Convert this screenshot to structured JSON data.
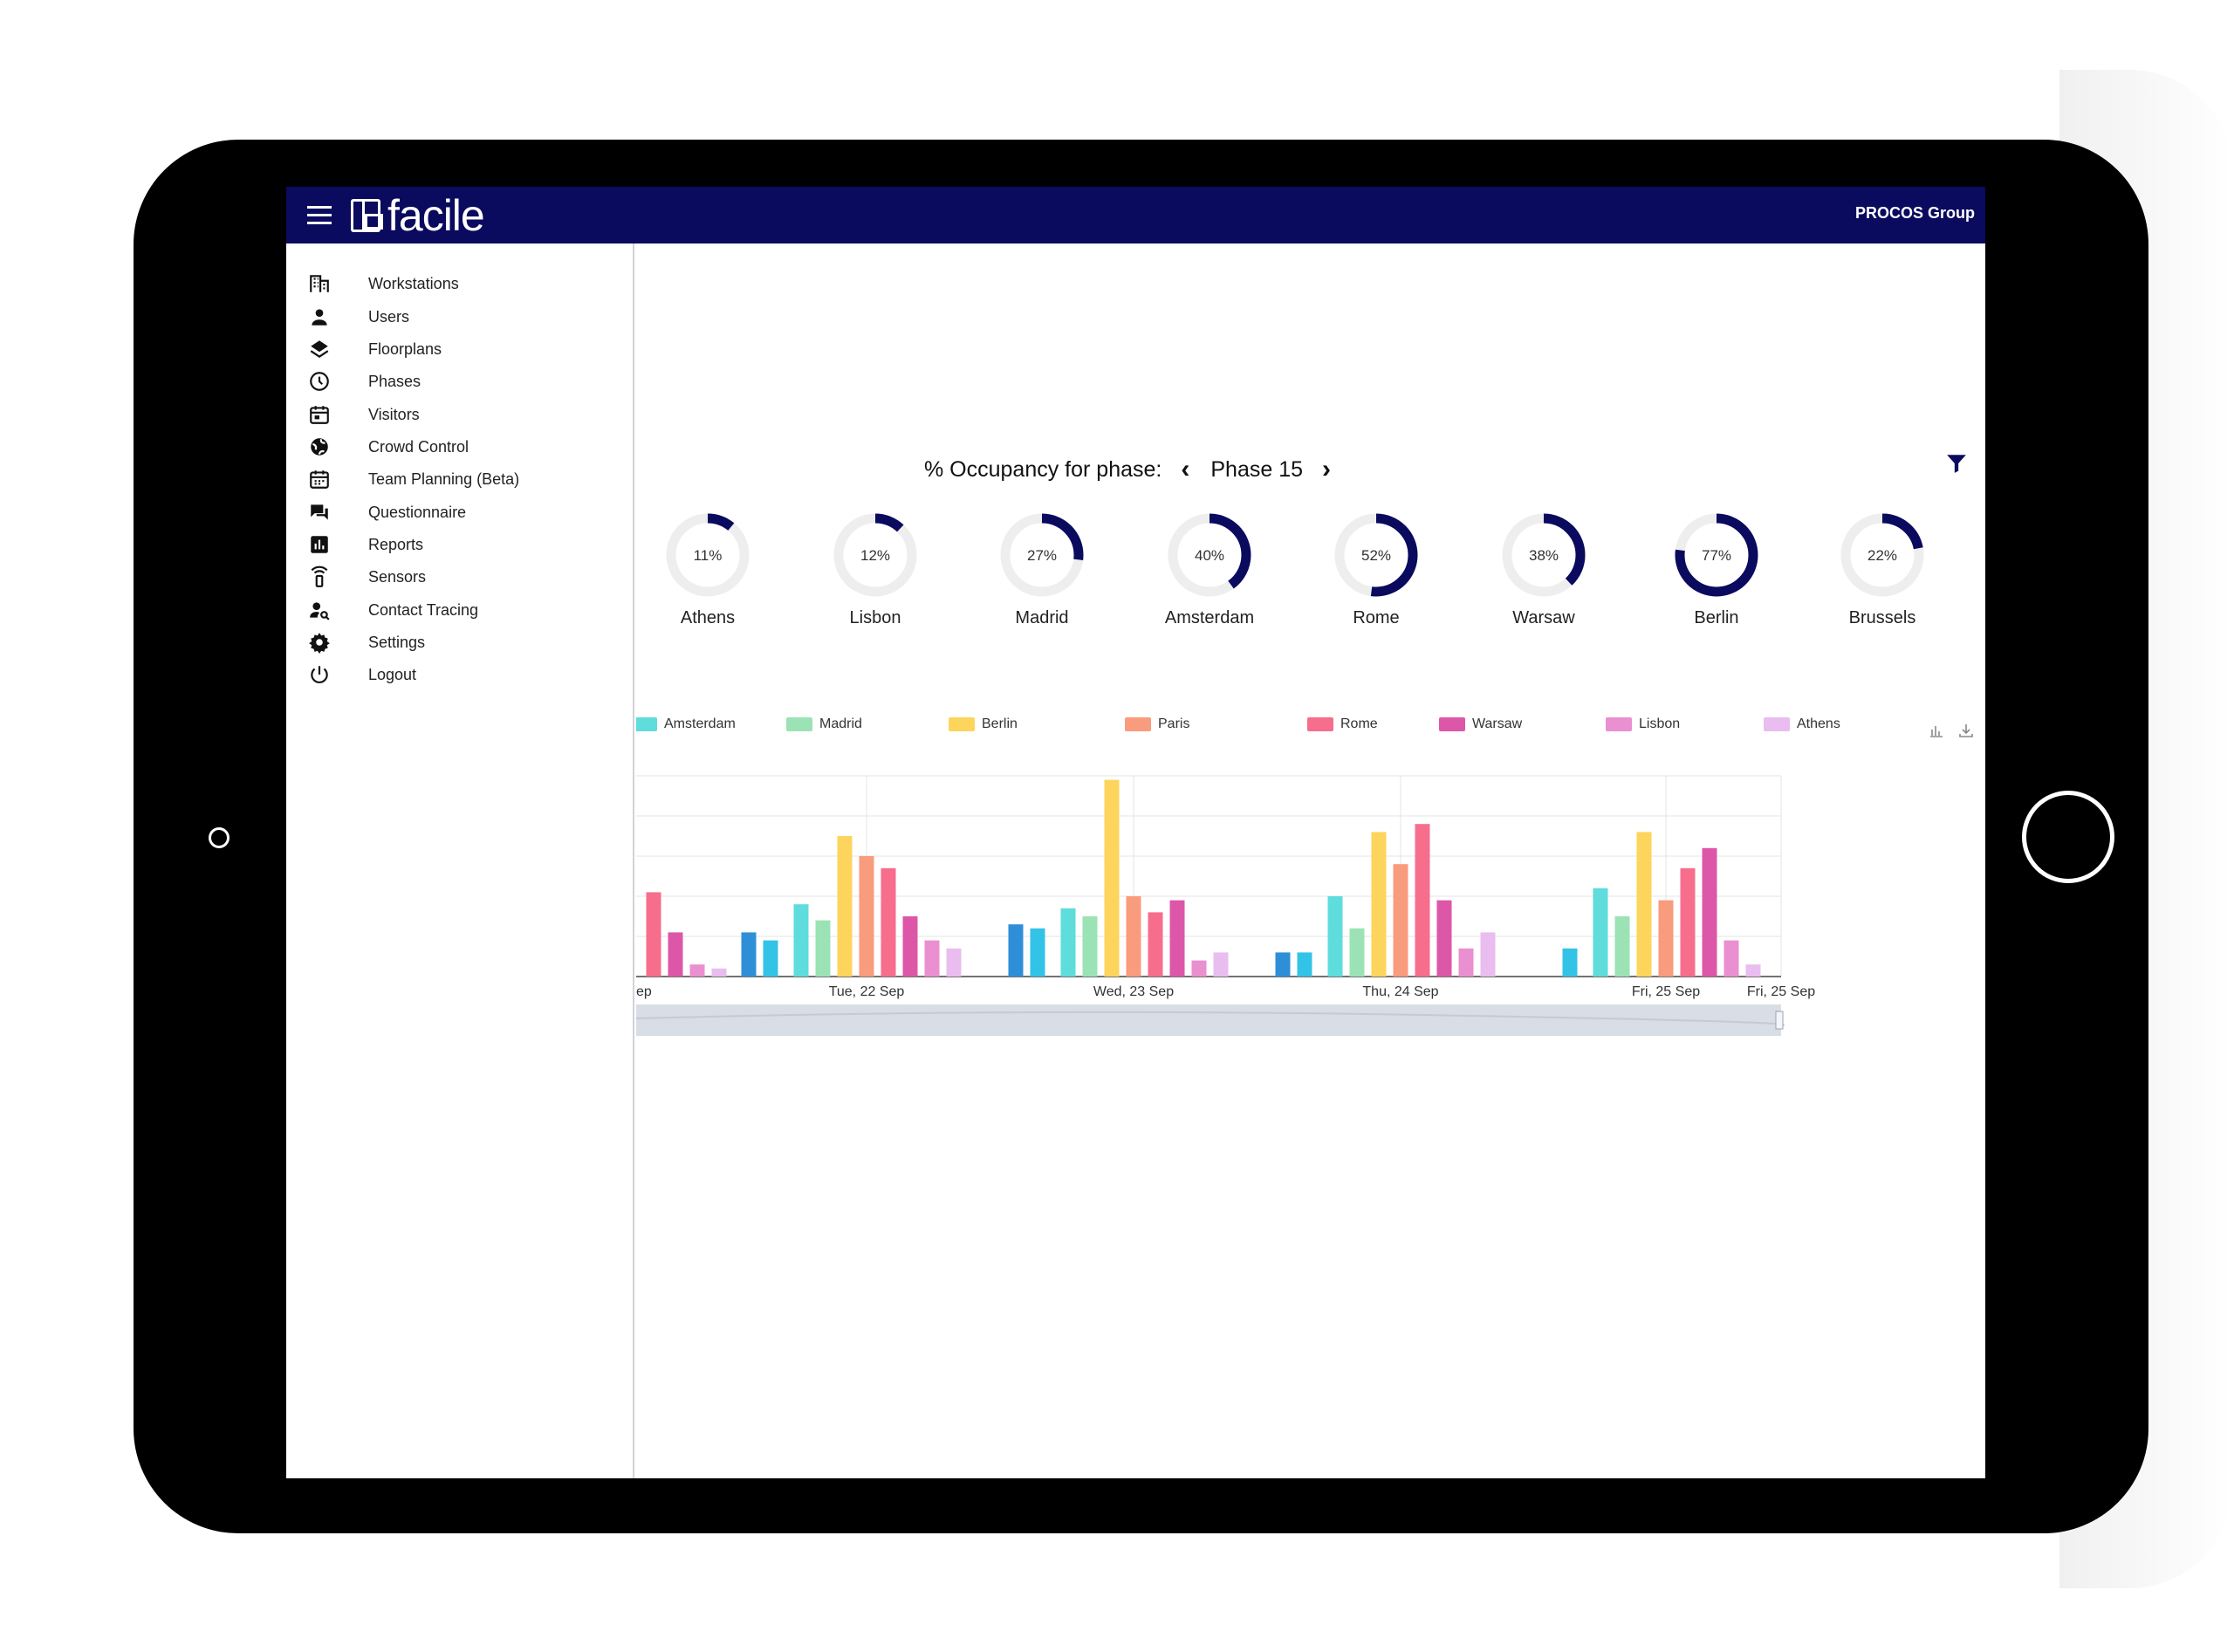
{
  "app": {
    "brand": "facile",
    "org_name": "PROCOS Group"
  },
  "sidebar": {
    "items": [
      {
        "label": "Workstations",
        "icon": "building-icon"
      },
      {
        "label": "Users",
        "icon": "person-icon"
      },
      {
        "label": "Floorplans",
        "icon": "layers-icon"
      },
      {
        "label": "Phases",
        "icon": "clock-icon"
      },
      {
        "label": "Visitors",
        "icon": "calendar-icon"
      },
      {
        "label": "Crowd Control",
        "icon": "globe-icon"
      },
      {
        "label": "Team Planning (Beta)",
        "icon": "calendar-grid-icon"
      },
      {
        "label": "Questionnaire",
        "icon": "chat-icon"
      },
      {
        "label": "Reports",
        "icon": "bar-chart-icon"
      },
      {
        "label": "Sensors",
        "icon": "sensor-icon"
      },
      {
        "label": "Contact Tracing",
        "icon": "person-search-icon"
      },
      {
        "label": "Settings",
        "icon": "gear-icon"
      },
      {
        "label": "Logout",
        "icon": "power-icon"
      }
    ]
  },
  "occupancy": {
    "title": "% Occupancy for phase:",
    "phase": "Phase 15",
    "accent_color": "#0a0a5e",
    "track_color": "#eeeeee",
    "cities": [
      {
        "name": "Athens",
        "value": 11,
        "label": "11%"
      },
      {
        "name": "Lisbon",
        "value": 12,
        "label": "12%"
      },
      {
        "name": "Madrid",
        "value": 27,
        "label": "27%"
      },
      {
        "name": "Amsterdam",
        "value": 40,
        "label": "40%"
      },
      {
        "name": "Rome",
        "value": 52,
        "label": "52%"
      },
      {
        "name": "Warsaw",
        "value": 38,
        "label": "38%"
      },
      {
        "name": "Berlin",
        "value": 77,
        "label": "77%"
      },
      {
        "name": "Brussels",
        "value": 22,
        "label": "22%"
      }
    ]
  },
  "chart_data": {
    "type": "bar",
    "grid": true,
    "legend_position": "top",
    "categories": [
      "ep",
      "Tue, 22 Sep",
      "Wed, 23 Sep",
      "Thu, 24 Sep",
      "Fri, 25 Sep"
    ],
    "extra_tick": "Fri, 25 Sep",
    "series": [
      {
        "name": "Brussels",
        "color": "#2e8fd8",
        "legend": false,
        "values": [
          null,
          11,
          13,
          6,
          null
        ]
      },
      {
        "name": "",
        "color": "#33c3e6",
        "legend": false,
        "values": [
          null,
          9,
          12,
          6,
          7
        ]
      },
      {
        "name": "Amsterdam",
        "color": "#5fdcdc",
        "legend": true,
        "values": [
          null,
          18,
          17,
          20,
          22
        ]
      },
      {
        "name": "Madrid",
        "color": "#9be3b4",
        "legend": true,
        "values": [
          null,
          14,
          15,
          12,
          15
        ]
      },
      {
        "name": "Berlin",
        "color": "#fdd55c",
        "legend": true,
        "values": [
          null,
          35,
          49,
          36,
          36
        ]
      },
      {
        "name": "Paris",
        "color": "#f99b7d",
        "legend": true,
        "values": [
          null,
          30,
          20,
          28,
          19
        ]
      },
      {
        "name": "Rome",
        "color": "#f66e8c",
        "legend": true,
        "values": [
          21,
          27,
          16,
          38,
          27
        ]
      },
      {
        "name": "Warsaw",
        "color": "#dd57a8",
        "legend": true,
        "values": [
          11,
          15,
          19,
          19,
          32
        ]
      },
      {
        "name": "Lisbon",
        "color": "#ea8fcf",
        "legend": true,
        "values": [
          3,
          9,
          4,
          7,
          9
        ]
      },
      {
        "name": "Athens",
        "color": "#e9bdef",
        "legend": true,
        "values": [
          2,
          7,
          6,
          11,
          3
        ]
      }
    ],
    "ylim": [
      0,
      50
    ]
  }
}
